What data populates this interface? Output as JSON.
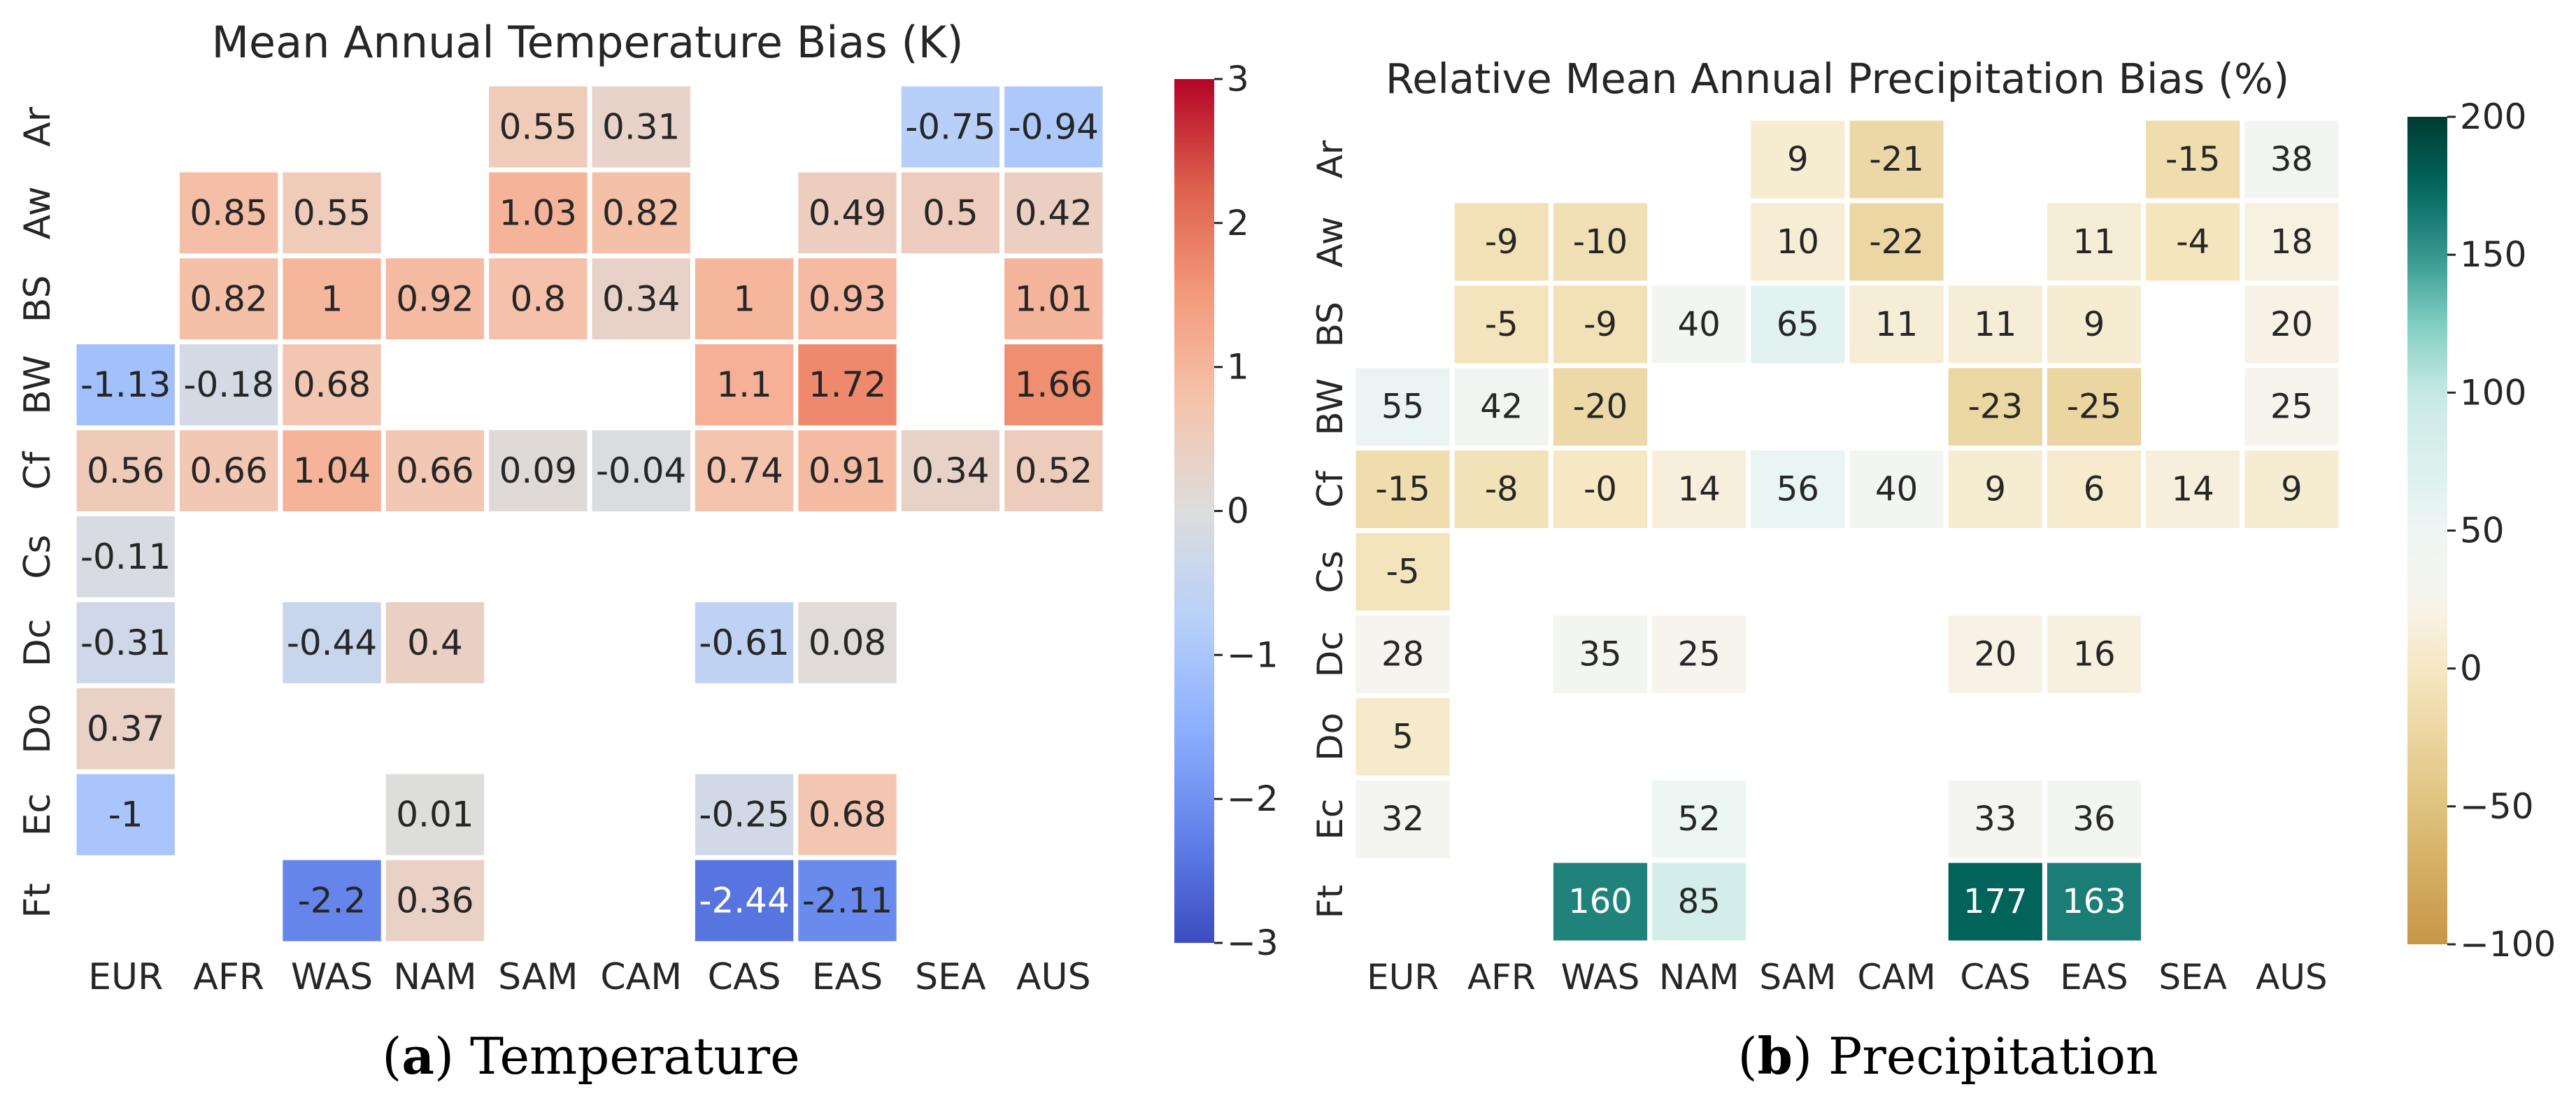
{
  "chart_data": [
    {
      "type": "heatmap",
      "title": "Mean Annual Temperature Bias (K)",
      "caption": {
        "tag": "a",
        "text": "Temperature"
      },
      "rows": [
        "Ar",
        "Aw",
        "BS",
        "BW",
        "Cf",
        "Cs",
        "Dc",
        "Do",
        "Ec",
        "Ft"
      ],
      "cols": [
        "EUR",
        "AFR",
        "WAS",
        "NAM",
        "SAM",
        "CAM",
        "CAS",
        "EAS",
        "SEA",
        "AUS"
      ],
      "values": [
        [
          null,
          null,
          null,
          null,
          0.55,
          0.31,
          null,
          null,
          -0.75,
          -0.94
        ],
        [
          null,
          0.85,
          0.55,
          null,
          1.03,
          0.82,
          null,
          0.49,
          0.5,
          0.42
        ],
        [
          null,
          0.82,
          1,
          0.92,
          0.8,
          0.34,
          1,
          0.93,
          null,
          1.01
        ],
        [
          -1.13,
          -0.18,
          0.68,
          null,
          null,
          null,
          1.1,
          1.72,
          null,
          1.66
        ],
        [
          0.56,
          0.66,
          1.04,
          0.66,
          0.09,
          -0.04,
          0.74,
          0.91,
          0.34,
          0.52
        ],
        [
          -0.11,
          null,
          null,
          null,
          null,
          null,
          null,
          null,
          null,
          null
        ],
        [
          -0.31,
          null,
          -0.44,
          0.4,
          null,
          null,
          -0.61,
          0.08,
          null,
          null
        ],
        [
          0.37,
          null,
          null,
          null,
          null,
          null,
          null,
          null,
          null,
          null
        ],
        [
          -1,
          null,
          null,
          0.01,
          null,
          null,
          -0.25,
          0.68,
          null,
          null
        ],
        [
          null,
          null,
          -2.2,
          0.36,
          null,
          null,
          -2.44,
          -2.11,
          null,
          null
        ]
      ],
      "labels": [
        [
          null,
          null,
          null,
          null,
          "0.55",
          "0.31",
          null,
          null,
          "-0.75",
          "-0.94"
        ],
        [
          null,
          "0.85",
          "0.55",
          null,
          "1.03",
          "0.82",
          null,
          "0.49",
          "0.5",
          "0.42"
        ],
        [
          null,
          "0.82",
          "1",
          "0.92",
          "0.8",
          "0.34",
          "1",
          "0.93",
          null,
          "1.01"
        ],
        [
          "-1.13",
          "-0.18",
          "0.68",
          null,
          null,
          null,
          "1.1",
          "1.72",
          null,
          "1.66"
        ],
        [
          "0.56",
          "0.66",
          "1.04",
          "0.66",
          "0.09",
          "-0.04",
          "0.74",
          "0.91",
          "0.34",
          "0.52"
        ],
        [
          "-0.11",
          null,
          null,
          null,
          null,
          null,
          null,
          null,
          null,
          null
        ],
        [
          "-0.31",
          null,
          "-0.44",
          "0.4",
          null,
          null,
          "-0.61",
          "0.08",
          null,
          null
        ],
        [
          "0.37",
          null,
          null,
          null,
          null,
          null,
          null,
          null,
          null,
          null
        ],
        [
          "-1",
          null,
          null,
          "0.01",
          null,
          null,
          "-0.25",
          "0.68",
          null,
          null
        ],
        [
          null,
          null,
          "-2.2",
          "0.36",
          null,
          null,
          "-2.44",
          "-2.11",
          null,
          null
        ]
      ],
      "vmin": -3,
      "vmax": 3,
      "colormap": "coolwarm",
      "colorbar_ticks": [
        -3,
        -2,
        -1,
        0,
        1,
        2,
        3
      ],
      "colorbar_tick_labels": [
        "−3",
        "−2",
        "−1",
        "0",
        "1",
        "2",
        "3"
      ]
    },
    {
      "type": "heatmap",
      "title": "Relative Mean Annual Precipitation Bias (%)",
      "caption": {
        "tag": "b",
        "text": "Precipitation"
      },
      "rows": [
        "Ar",
        "Aw",
        "BS",
        "BW",
        "Cf",
        "Cs",
        "Dc",
        "Do",
        "Ec",
        "Ft"
      ],
      "cols": [
        "EUR",
        "AFR",
        "WAS",
        "NAM",
        "SAM",
        "CAM",
        "CAS",
        "EAS",
        "SEA",
        "AUS"
      ],
      "values": [
        [
          null,
          null,
          null,
          null,
          9,
          -21,
          null,
          null,
          -15,
          38
        ],
        [
          null,
          -9,
          -10,
          null,
          10,
          -22,
          null,
          11,
          -4,
          18
        ],
        [
          null,
          -5,
          -9,
          40,
          65,
          11,
          11,
          9,
          null,
          20
        ],
        [
          55,
          42,
          -20,
          null,
          null,
          null,
          -23,
          -25,
          null,
          25
        ],
        [
          -15,
          -8,
          0,
          14,
          56,
          40,
          9,
          6,
          14,
          9
        ],
        [
          -5,
          null,
          null,
          null,
          null,
          null,
          null,
          null,
          null,
          null
        ],
        [
          28,
          null,
          35,
          25,
          null,
          null,
          20,
          16,
          null,
          null
        ],
        [
          5,
          null,
          null,
          null,
          null,
          null,
          null,
          null,
          null,
          null
        ],
        [
          32,
          null,
          null,
          52,
          null,
          null,
          33,
          36,
          null,
          null
        ],
        [
          null,
          null,
          160,
          85,
          null,
          null,
          177,
          163,
          null,
          null
        ]
      ],
      "labels": [
        [
          null,
          null,
          null,
          null,
          "9",
          "-21",
          null,
          null,
          "-15",
          "38"
        ],
        [
          null,
          "-9",
          "-10",
          null,
          "10",
          "-22",
          null,
          "11",
          "-4",
          "18"
        ],
        [
          null,
          "-5",
          "-9",
          "40",
          "65",
          "11",
          "11",
          "9",
          null,
          "20"
        ],
        [
          "55",
          "42",
          "-20",
          null,
          null,
          null,
          "-23",
          "-25",
          null,
          "25"
        ],
        [
          "-15",
          "-8",
          "-0",
          "14",
          "56",
          "40",
          "9",
          "6",
          "14",
          "9"
        ],
        [
          "-5",
          null,
          null,
          null,
          null,
          null,
          null,
          null,
          null,
          null
        ],
        [
          "28",
          null,
          "35",
          "25",
          null,
          null,
          "20",
          "16",
          null,
          null
        ],
        [
          "5",
          null,
          null,
          null,
          null,
          null,
          null,
          null,
          null,
          null
        ],
        [
          "32",
          null,
          null,
          "52",
          null,
          null,
          "33",
          "36",
          null,
          null
        ],
        [
          null,
          null,
          "160",
          "85",
          null,
          null,
          "177",
          "163",
          null,
          null
        ]
      ],
      "vmin": -100,
      "vmax": 200,
      "colormap": "BrBG-centered",
      "colorbar_ticks": [
        -100,
        -50,
        0,
        50,
        100,
        150,
        200
      ],
      "colorbar_tick_labels": [
        "−100",
        "−50",
        "0",
        "50",
        "100",
        "150",
        "200"
      ]
    }
  ]
}
